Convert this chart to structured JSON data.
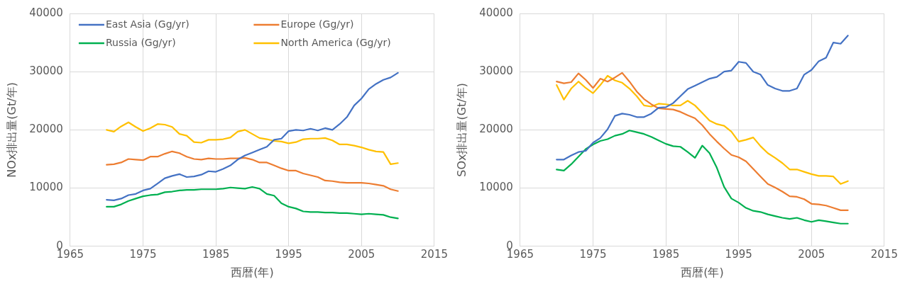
{
  "chart_data": [
    {
      "type": "line",
      "ylabel": "NOx排出量(Gt/年)",
      "xlabel": "西暦(年)",
      "legend": "top",
      "grid": true,
      "marker": "none",
      "line_style": "solid",
      "x": [
        1970,
        1971,
        1972,
        1973,
        1974,
        1975,
        1976,
        1977,
        1978,
        1979,
        1980,
        1981,
        1982,
        1983,
        1984,
        1985,
        1986,
        1987,
        1988,
        1989,
        1990,
        1991,
        1992,
        1993,
        1994,
        1995,
        1996,
        1997,
        1998,
        1999,
        2000,
        2001,
        2002,
        2003,
        2004,
        2005,
        2006,
        2007,
        2008,
        2009,
        2010
      ],
      "xlim": [
        1965,
        2015
      ],
      "xticks": [
        1965,
        1975,
        1985,
        1995,
        2005,
        2015
      ],
      "ylim": [
        0,
        40000
      ],
      "yticks": [
        0,
        10000,
        20000,
        30000,
        40000
      ],
      "series": [
        {
          "name": "East Asia (Gg/yr)",
          "color": "#4472c4",
          "values": [
            8000,
            7900,
            8200,
            8800,
            9000,
            9600,
            9900,
            10800,
            11700,
            12100,
            12400,
            11900,
            12000,
            12300,
            12900,
            12800,
            13300,
            13900,
            14900,
            15600,
            16100,
            16600,
            17100,
            18300,
            18500,
            19800,
            20000,
            19900,
            20200,
            19900,
            20300,
            20000,
            21000,
            22200,
            24200,
            25400,
            27000,
            27900,
            28600,
            29000,
            29800
          ]
        },
        {
          "name": "Europe (Gg/yr)",
          "color": "#ed7d31",
          "values": [
            14000,
            14100,
            14400,
            15000,
            14900,
            14800,
            15400,
            15400,
            15900,
            16300,
            16000,
            15400,
            15000,
            14900,
            15100,
            15000,
            15000,
            15100,
            15100,
            15200,
            14900,
            14400,
            14400,
            13900,
            13400,
            13000,
            13000,
            12500,
            12200,
            11900,
            11300,
            11200,
            11000,
            10900,
            10900,
            10900,
            10800,
            10600,
            10400,
            9800,
            9500
          ]
        },
        {
          "name": "Russia (Gg/yr)",
          "color": "#00b050",
          "values": [
            6800,
            6800,
            7200,
            7800,
            8200,
            8600,
            8800,
            8900,
            9300,
            9400,
            9600,
            9700,
            9700,
            9800,
            9800,
            9800,
            9900,
            10100,
            10000,
            9900,
            10200,
            9900,
            9000,
            8700,
            7400,
            6800,
            6500,
            6000,
            5900,
            5900,
            5800,
            5800,
            5700,
            5700,
            5600,
            5500,
            5600,
            5500,
            5400,
            5000,
            4800
          ]
        },
        {
          "name": "North America (Gg/yr)",
          "color": "#ffc000",
          "values": [
            20000,
            19700,
            20600,
            21300,
            20500,
            19800,
            20300,
            21000,
            20900,
            20500,
            19300,
            19000,
            17900,
            17800,
            18300,
            18300,
            18400,
            18700,
            19700,
            20000,
            19300,
            18600,
            18400,
            18100,
            18000,
            17700,
            17900,
            18400,
            18500,
            18500,
            18600,
            18200,
            17500,
            17500,
            17300,
            17000,
            16600,
            16300,
            16200,
            14100,
            14300
          ]
        }
      ]
    },
    {
      "type": "line",
      "ylabel": "SOx排出量(Gt/年)",
      "xlabel": "西暦(年)",
      "grid": true,
      "marker": "none",
      "line_style": "solid",
      "x": [
        1970,
        1971,
        1972,
        1973,
        1974,
        1975,
        1976,
        1977,
        1978,
        1979,
        1980,
        1981,
        1982,
        1983,
        1984,
        1985,
        1986,
        1987,
        1988,
        1989,
        1990,
        1991,
        1992,
        1993,
        1994,
        1995,
        1996,
        1997,
        1998,
        1999,
        2000,
        2001,
        2002,
        2003,
        2004,
        2005,
        2006,
        2007,
        2008,
        2009,
        2010
      ],
      "xlim": [
        1965,
        2015
      ],
      "xticks": [
        1965,
        1975,
        1985,
        1995,
        2005,
        2015
      ],
      "ylim": [
        0,
        40000
      ],
      "yticks": [
        0,
        10000,
        20000,
        30000,
        40000
      ],
      "series": [
        {
          "color": "#4472c4",
          "values": [
            14900,
            14900,
            15600,
            16200,
            16400,
            17800,
            18600,
            20100,
            22400,
            22800,
            22600,
            22200,
            22200,
            22800,
            23800,
            23900,
            24600,
            25800,
            27000,
            27600,
            28200,
            28800,
            29100,
            30000,
            30200,
            31700,
            31500,
            30000,
            29500,
            27700,
            27100,
            26700,
            26700,
            27100,
            29500,
            30300,
            31800,
            32400,
            35000,
            34800,
            36200
          ]
        },
        {
          "color": "#ed7d31",
          "values": [
            28300,
            28000,
            28200,
            29700,
            28600,
            27200,
            28800,
            28300,
            29000,
            29800,
            28300,
            26600,
            25300,
            24400,
            23700,
            23600,
            23500,
            23100,
            22500,
            22000,
            20800,
            19300,
            18000,
            16800,
            15700,
            15300,
            14600,
            13300,
            12000,
            10700,
            10100,
            9400,
            8600,
            8500,
            8100,
            7300,
            7200,
            7000,
            6600,
            6200,
            6200
          ]
        },
        {
          "color": "#00b050",
          "values": [
            13200,
            13000,
            14100,
            15400,
            16700,
            17500,
            18100,
            18400,
            19000,
            19300,
            19900,
            19600,
            19300,
            18800,
            18200,
            17600,
            17200,
            17100,
            16200,
            15200,
            17300,
            16000,
            13500,
            10200,
            8200,
            7500,
            6600,
            6100,
            5900,
            5500,
            5200,
            4900,
            4700,
            4900,
            4500,
            4200,
            4500,
            4300,
            4100,
            3900,
            3900
          ]
        },
        {
          "color": "#ffc000",
          "values": [
            27700,
            25200,
            27100,
            28300,
            27200,
            26300,
            27700,
            29300,
            28500,
            28100,
            27100,
            25800,
            24200,
            24000,
            24500,
            24400,
            24200,
            24200,
            25000,
            24200,
            22900,
            21600,
            21000,
            20700,
            19700,
            18000,
            18300,
            18700,
            17200,
            16000,
            15200,
            14300,
            13200,
            13200,
            12800,
            12400,
            12100,
            12100,
            12000,
            10700,
            11200
          ]
        }
      ]
    }
  ]
}
